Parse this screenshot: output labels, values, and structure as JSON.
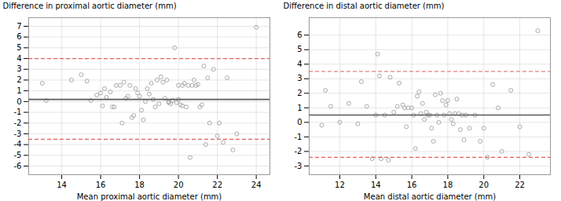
{
  "chart_data": [
    {
      "type": "scatter",
      "xlabel": "Mean proximal aortic diameter (mm)",
      "ylabel": "Difference in proximal aortic diameter (mm)",
      "xlim": [
        12.3,
        24.7
      ],
      "ylim": [
        -6.8,
        7.8
      ],
      "xticks": [
        14,
        16,
        18,
        20,
        22,
        24
      ],
      "yticks": [
        -6,
        -5,
        -4,
        -3,
        -2,
        -1,
        0,
        1,
        2,
        3,
        4,
        5,
        6,
        7
      ],
      "grid": true,
      "series": [
        {
          "type": "scatter",
          "color": "#aaaaaa",
          "marker": "open_circle",
          "x": [
            13.0,
            13.2,
            14.5,
            15.0,
            15.3,
            15.5,
            15.8,
            16.0,
            16.1,
            16.2,
            16.3,
            16.5,
            16.6,
            16.7,
            16.8,
            17.0,
            17.1,
            17.2,
            17.3,
            17.4,
            17.5,
            17.6,
            17.7,
            17.8,
            17.9,
            18.0,
            18.1,
            18.2,
            18.3,
            18.4,
            18.5,
            18.6,
            18.7,
            18.8,
            18.9,
            19.0,
            19.1,
            19.2,
            19.3,
            19.4,
            19.5,
            19.5,
            19.6,
            19.7,
            19.8,
            19.9,
            20.0,
            20.0,
            20.1,
            20.2,
            20.2,
            20.3,
            20.4,
            20.5,
            20.6,
            20.7,
            20.8,
            20.9,
            21.0,
            21.1,
            21.2,
            21.3,
            21.4,
            21.5,
            21.6,
            21.8,
            22.0,
            22.1,
            22.3,
            22.5,
            22.8,
            23.0,
            24.0
          ],
          "values": [
            1.7,
            0.1,
            2.0,
            2.5,
            1.9,
            0.1,
            0.6,
            0.8,
            -0.4,
            1.2,
            0.4,
            0.9,
            -0.5,
            -0.5,
            1.5,
            1.5,
            -2.0,
            1.8,
            0.3,
            0.5,
            1.5,
            -1.5,
            -1.3,
            1.2,
            0.8,
            0.5,
            -0.8,
            -1.7,
            0.0,
            1.2,
            0.7,
            1.7,
            0.2,
            -0.5,
            2.0,
            -0.2,
            2.3,
            1.8,
            0.3,
            2.0,
            0.0,
            -0.1,
            -0.2,
            0.1,
            5.0,
            -0.1,
            0.2,
            1.5,
            -0.3,
            1.5,
            -0.4,
            1.7,
            -0.5,
            1.5,
            -5.2,
            1.5,
            2.0,
            1.5,
            1.6,
            -0.5,
            -0.3,
            3.3,
            -4.0,
            2.2,
            -2.0,
            3.0,
            -3.2,
            -2.0,
            -3.8,
            2.2,
            -4.5,
            -3.0,
            6.9
          ]
        },
        {
          "type": "hline",
          "color": "#595959",
          "line_style": "solid",
          "values": [
            0.2
          ]
        },
        {
          "type": "hline",
          "color": "#e06060",
          "line_style": "dashed",
          "values": [
            4.0
          ]
        },
        {
          "type": "hline",
          "color": "#e06060",
          "line_style": "dashed",
          "values": [
            -3.5
          ]
        }
      ]
    },
    {
      "type": "scatter",
      "xlabel": "Mean distal aortic diameter (mm)",
      "ylabel": "Difference in distal aortic diameter (mm)",
      "xlim": [
        10.3,
        23.7
      ],
      "ylim": [
        -3.6,
        7.2
      ],
      "xticks": [
        12,
        14,
        16,
        18,
        20,
        22
      ],
      "yticks": [
        -3,
        -2,
        -1,
        0,
        1,
        2,
        3,
        4,
        5,
        6
      ],
      "grid": true,
      "series": [
        {
          "type": "scatter",
          "color": "#aaaaaa",
          "marker": "open_circle",
          "x": [
            11.0,
            11.2,
            11.5,
            12.0,
            12.5,
            13.0,
            13.2,
            13.5,
            13.8,
            14.0,
            14.1,
            14.2,
            14.3,
            14.5,
            14.7,
            14.8,
            15.0,
            15.2,
            15.3,
            15.5,
            15.6,
            15.7,
            15.8,
            16.0,
            16.1,
            16.2,
            16.3,
            16.4,
            16.5,
            16.6,
            16.7,
            16.8,
            16.9,
            17.0,
            17.1,
            17.2,
            17.3,
            17.4,
            17.5,
            17.6,
            17.7,
            17.8,
            17.9,
            18.0,
            18.1,
            18.2,
            18.3,
            18.4,
            18.5,
            18.6,
            18.7,
            18.8,
            18.9,
            19.0,
            19.2,
            19.5,
            19.8,
            20.0,
            20.2,
            20.5,
            20.8,
            21.0,
            21.5,
            22.0,
            22.5,
            23.0
          ],
          "values": [
            -0.2,
            2.2,
            1.1,
            0.0,
            1.3,
            -0.1,
            2.8,
            1.1,
            -2.5,
            0.5,
            4.7,
            3.2,
            -2.5,
            0.5,
            -2.6,
            3.1,
            0.7,
            1.1,
            2.7,
            1.2,
            1.0,
            -0.3,
            1.0,
            1.0,
            0.5,
            -1.8,
            1.8,
            2.1,
            0.6,
            1.3,
            0.2,
            0.7,
            0.5,
            0.5,
            -0.4,
            -1.3,
            1.9,
            0.5,
            0.0,
            2.0,
            1.5,
            0.5,
            1.2,
            1.5,
            0.6,
            0.2,
            -0.1,
            0.6,
            1.6,
            0.6,
            -0.5,
            0.5,
            -1.2,
            0.5,
            -0.4,
            0.5,
            -1.3,
            -0.4,
            -2.4,
            2.6,
            1.0,
            -2.0,
            2.2,
            -0.3,
            -2.2,
            6.3
          ]
        },
        {
          "type": "hline",
          "color": "#595959",
          "line_style": "solid",
          "values": [
            0.5
          ]
        },
        {
          "type": "hline",
          "color": "#e06060",
          "line_style": "dashed",
          "values": [
            3.5
          ]
        },
        {
          "type": "hline",
          "color": "#e06060",
          "line_style": "dashed",
          "values": [
            -2.4
          ]
        }
      ]
    }
  ]
}
